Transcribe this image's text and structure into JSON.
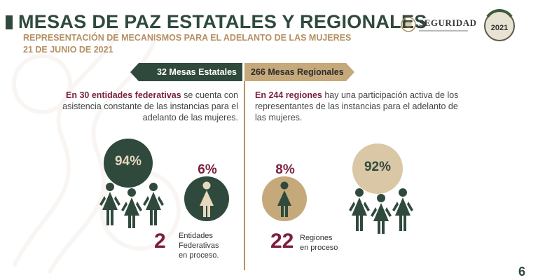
{
  "header": {
    "title": "MESAS DE PAZ ESTATALES Y REGIONALES",
    "subtitle": "REPRESENTACIÓN DE MECANISMOS PARA EL ADELANTO DE LAS MUJERES",
    "date": "21 DE JUNIO DE 2021"
  },
  "logos": {
    "seguridad": "SEGURIDAD",
    "year_logo": "2021"
  },
  "tabs": {
    "left": "32 Mesas Estatales",
    "right": "266 Mesas Regionales"
  },
  "left": {
    "intro_bold": "En 30 entidades federativas",
    "intro_rest": " se cuenta con  asistencia constante de las  instancias para el adelanto de las mujeres.",
    "pct_main": "94%",
    "pct_minor": "6%",
    "count": "2",
    "count_label_1": "Entidades",
    "count_label_2": "Federativas",
    "count_label_3": "en proceso."
  },
  "right": {
    "intro_bold": "En 244 regiones",
    "intro_rest": " hay una participación activa de los representantes de las instancias para el adelanto de las mujeres.",
    "pct_minor": "8%",
    "pct_main": "92%",
    "count": "22",
    "count_label_1": "Regiones",
    "count_label_2": "en proceso"
  },
  "page_number": "6",
  "colors": {
    "green": "#2f4a3d",
    "gold": "#c5a97a",
    "burgundy": "#7a1f3d"
  }
}
